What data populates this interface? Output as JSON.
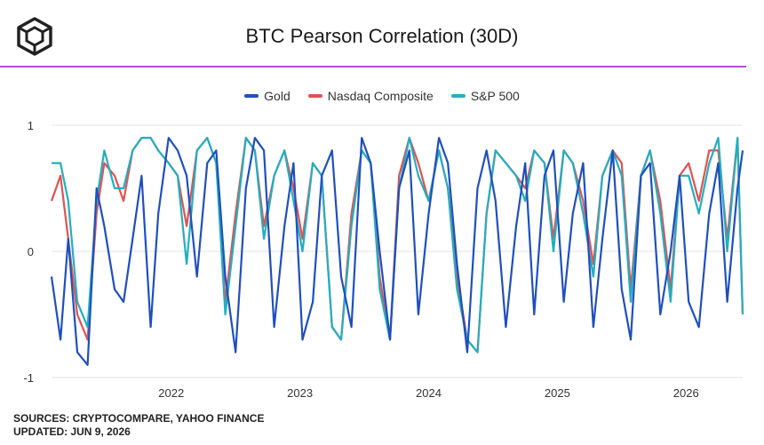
{
  "header": {
    "title": "BTC Pearson Correlation (30D)",
    "logo_icon": "cube-logo-icon"
  },
  "colors": {
    "accent_rule": "#b44bdb",
    "grid": "#e3e3e3"
  },
  "footer": {
    "sources": "SOURCES: CRYPTOCOMPARE, YAHOO FINANCE",
    "updated": "UPDATED: JUN 9, 2026"
  },
  "chart_data": {
    "type": "line",
    "title": "BTC Pearson Correlation (30D)",
    "xlabel": "",
    "ylabel": "",
    "xlim": [
      2021.07,
      2026.44
    ],
    "ylim": [
      -1,
      1
    ],
    "x_ticks": [
      2022,
      2023,
      2024,
      2025,
      2026
    ],
    "x_tick_labels": [
      "2022",
      "2023",
      "2024",
      "2025",
      "2026"
    ],
    "y_ticks": [
      1,
      0,
      -1
    ],
    "y_tick_labels": [
      "1",
      "0",
      "-1"
    ],
    "grid": "horizontal",
    "legend_position": "top-center",
    "x": [
      2021.07,
      2021.14,
      2021.2,
      2021.27,
      2021.35,
      2021.42,
      2021.48,
      2021.56,
      2021.63,
      2021.7,
      2021.77,
      2021.84,
      2021.9,
      2021.98,
      2022.05,
      2022.12,
      2022.2,
      2022.28,
      2022.35,
      2022.42,
      2022.5,
      2022.58,
      2022.65,
      2022.72,
      2022.8,
      2022.88,
      2022.95,
      2023.02,
      2023.1,
      2023.17,
      2023.25,
      2023.32,
      2023.4,
      2023.48,
      2023.55,
      2023.62,
      2023.7,
      2023.77,
      2023.85,
      2023.92,
      2024.0,
      2024.08,
      2024.15,
      2024.22,
      2024.3,
      2024.38,
      2024.45,
      2024.52,
      2024.6,
      2024.68,
      2024.75,
      2024.82,
      2024.9,
      2024.97,
      2025.05,
      2025.12,
      2025.2,
      2025.28,
      2025.35,
      2025.43,
      2025.5,
      2025.57,
      2025.65,
      2025.72,
      2025.8,
      2025.88,
      2025.95,
      2026.02,
      2026.1,
      2026.18,
      2026.25,
      2026.32,
      2026.4,
      2026.44
    ],
    "series": [
      {
        "name": "Gold",
        "color": "#1f4fbf",
        "values": [
          -0.2,
          -0.7,
          0.1,
          -0.8,
          -0.9,
          0.5,
          0.2,
          -0.3,
          -0.4,
          0.1,
          0.6,
          -0.6,
          0.3,
          0.9,
          0.8,
          0.6,
          -0.2,
          0.7,
          0.8,
          -0.2,
          -0.8,
          0.5,
          0.9,
          0.8,
          -0.6,
          0.2,
          0.7,
          -0.7,
          -0.4,
          0.6,
          0.8,
          -0.2,
          -0.6,
          0.9,
          0.7,
          0.0,
          -0.7,
          0.5,
          0.8,
          -0.5,
          0.3,
          0.9,
          0.7,
          -0.1,
          -0.8,
          0.5,
          0.8,
          0.4,
          -0.6,
          0.2,
          0.7,
          -0.5,
          0.6,
          0.8,
          -0.4,
          0.3,
          0.7,
          -0.6,
          0.1,
          0.8,
          -0.3,
          -0.7,
          0.6,
          0.7,
          -0.5,
          0.0,
          0.6,
          -0.4,
          -0.6,
          0.3,
          0.7,
          -0.4,
          0.5,
          0.8
        ]
      },
      {
        "name": "Nasdaq Composite",
        "color": "#e05252",
        "values": [
          0.4,
          0.6,
          0.1,
          -0.5,
          -0.7,
          0.3,
          0.7,
          0.6,
          0.4,
          0.8,
          0.9,
          0.9,
          0.8,
          0.7,
          0.6,
          0.2,
          0.8,
          0.9,
          0.7,
          -0.4,
          0.3,
          0.9,
          0.8,
          0.2,
          0.6,
          0.8,
          0.5,
          0.1,
          0.7,
          0.6,
          -0.6,
          -0.7,
          0.3,
          0.8,
          0.7,
          -0.2,
          -0.7,
          0.6,
          0.9,
          0.7,
          0.4,
          0.8,
          0.5,
          -0.2,
          -0.7,
          -0.8,
          0.3,
          0.8,
          0.7,
          0.6,
          0.5,
          0.8,
          0.7,
          0.1,
          0.8,
          0.7,
          0.4,
          -0.1,
          0.6,
          0.8,
          0.7,
          -0.3,
          0.6,
          0.8,
          0.4,
          -0.3,
          0.6,
          0.7,
          0.4,
          0.8,
          0.8,
          0.1,
          0.9,
          -0.5
        ]
      },
      {
        "name": "S&P 500",
        "color": "#22aec0",
        "values": [
          0.7,
          0.7,
          0.4,
          -0.4,
          -0.6,
          0.4,
          0.8,
          0.5,
          0.5,
          0.8,
          0.9,
          0.9,
          0.8,
          0.7,
          0.6,
          -0.1,
          0.8,
          0.9,
          0.7,
          -0.5,
          0.2,
          0.9,
          0.8,
          0.1,
          0.6,
          0.8,
          0.4,
          0.0,
          0.7,
          0.6,
          -0.6,
          -0.7,
          0.2,
          0.8,
          0.7,
          -0.3,
          -0.7,
          0.5,
          0.9,
          0.6,
          0.4,
          0.8,
          0.5,
          -0.3,
          -0.7,
          -0.8,
          0.3,
          0.8,
          0.7,
          0.6,
          0.4,
          0.8,
          0.7,
          0.0,
          0.8,
          0.7,
          0.3,
          -0.2,
          0.6,
          0.8,
          0.6,
          -0.4,
          0.6,
          0.8,
          0.3,
          -0.4,
          0.6,
          0.6,
          0.3,
          0.7,
          0.9,
          0.0,
          0.9,
          -0.5
        ]
      }
    ]
  }
}
